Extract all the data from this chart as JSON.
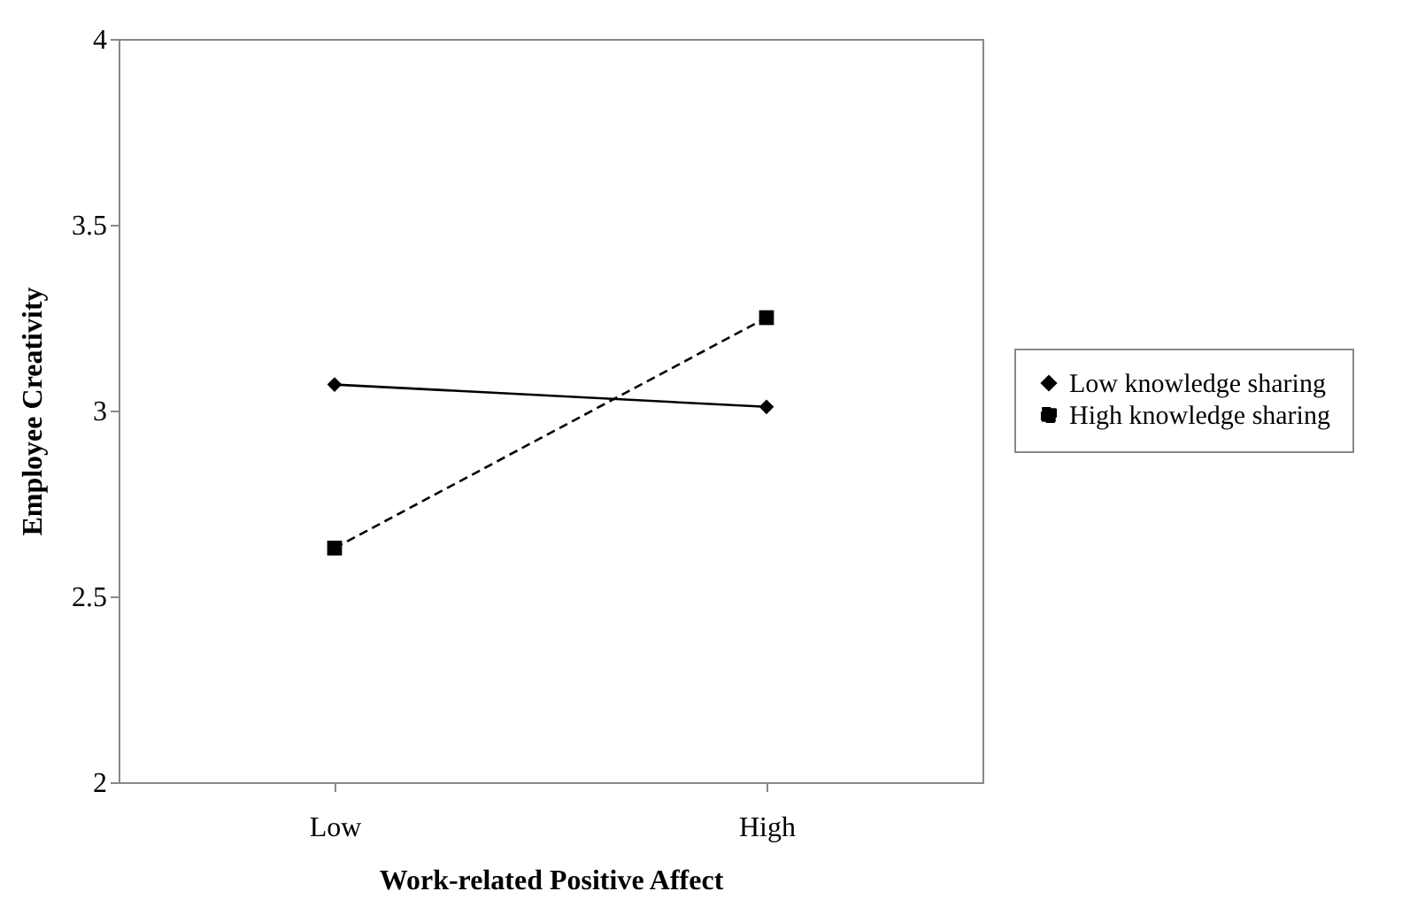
{
  "chart_data": {
    "type": "line",
    "xlabel": "Work-related Positive Affect",
    "ylabel": "Employee Creativity",
    "categories": [
      "Low",
      "High"
    ],
    "series": [
      {
        "name": "Low knowledge sharing",
        "color": "#000000",
        "values": [
          3.07,
          3.01
        ],
        "marker": "diamond",
        "line_style": "solid"
      },
      {
        "name": "High knowledge sharing",
        "color": "#000000",
        "values": [
          2.63,
          3.25
        ],
        "marker": "square",
        "line_style": "dashed"
      }
    ],
    "ylim": [
      2,
      4
    ],
    "yticks": [
      2,
      2.5,
      3,
      3.5,
      4
    ],
    "grid": false,
    "legend": "right"
  }
}
